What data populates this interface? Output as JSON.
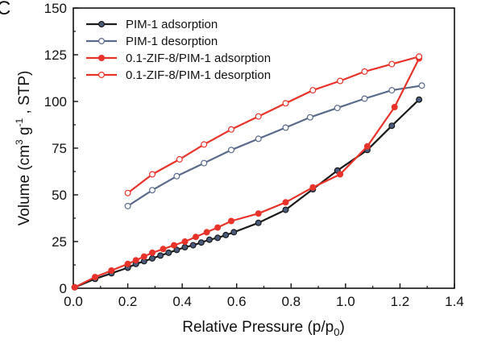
{
  "panel_label": "C",
  "chart_data": {
    "type": "line",
    "xlabel": "Relative Pressure (p/p",
    "xlabel_sub": "0",
    "xlabel_end": ")",
    "ylabel": {
      "prefix": "Volume (cm",
      "sup1": "3",
      "mid": " g",
      "sup2": "-1",
      "suffix": " , STP)"
    },
    "xlim": [
      0.0,
      1.4
    ],
    "ylim": [
      0,
      150
    ],
    "x_ticks": [
      0.0,
      0.2,
      0.4,
      0.6,
      0.8,
      1.0,
      1.2,
      1.4
    ],
    "x_tick_labels": [
      "0.0",
      "0.2",
      "0.4",
      "0.6",
      "0.8",
      "1.0",
      "1.2",
      "1.4"
    ],
    "y_ticks": [
      0,
      25,
      50,
      75,
      100,
      125,
      150
    ],
    "y_tick_labels": [
      "0",
      "25",
      "50",
      "75",
      "100",
      "125",
      "150"
    ],
    "legend_position": "top-left",
    "series": [
      {
        "name": "PIM-1 adsorption",
        "color": "#1a1a1a",
        "marker_fill": "#4a5a7a",
        "x": [
          0.005,
          0.08,
          0.14,
          0.2,
          0.23,
          0.26,
          0.29,
          0.32,
          0.35,
          0.38,
          0.41,
          0.44,
          0.47,
          0.5,
          0.53,
          0.56,
          0.59,
          0.68,
          0.78,
          0.88,
          0.97,
          1.08,
          1.17,
          1.27
        ],
        "y": [
          0.5,
          5,
          8,
          11,
          13,
          14.5,
          16,
          17.5,
          19,
          20.5,
          22,
          23,
          24.5,
          26,
          27,
          28.5,
          30,
          35,
          42,
          53,
          63,
          74,
          87,
          101
        ]
      },
      {
        "name": "PIM-1 desorption",
        "color": "#5a6a8a",
        "marker_fill": "#ffffff",
        "x": [
          1.28,
          1.17,
          1.07,
          0.97,
          0.87,
          0.78,
          0.68,
          0.58,
          0.48,
          0.38,
          0.29,
          0.2
        ],
        "y": [
          108.5,
          106,
          101.5,
          96.5,
          91.5,
          86,
          80,
          74,
          67,
          60,
          52.5,
          44
        ]
      },
      {
        "name": "0.1-ZIF-8/PIM-1 adsorption",
        "color": "#e8332a",
        "marker_fill": "#e8332a",
        "x": [
          0.005,
          0.08,
          0.14,
          0.2,
          0.23,
          0.26,
          0.29,
          0.33,
          0.37,
          0.41,
          0.45,
          0.49,
          0.53,
          0.58,
          0.68,
          0.78,
          0.88,
          0.98,
          1.08,
          1.18,
          1.27
        ],
        "y": [
          0.5,
          6,
          9.5,
          13,
          15,
          17,
          19,
          21,
          23,
          25,
          27.5,
          30,
          32.5,
          36,
          40,
          46,
          54,
          61,
          76,
          97,
          123
        ]
      },
      {
        "name": "0.1-ZIF-8/PIM-1 desorption",
        "color": "#e8332a",
        "marker_fill": "#ffffff",
        "x": [
          1.27,
          1.17,
          1.07,
          0.98,
          0.88,
          0.78,
          0.68,
          0.58,
          0.48,
          0.39,
          0.29,
          0.2
        ],
        "y": [
          124,
          120,
          116,
          111,
          106,
          99,
          92,
          85,
          77,
          69,
          61,
          51
        ]
      }
    ]
  }
}
